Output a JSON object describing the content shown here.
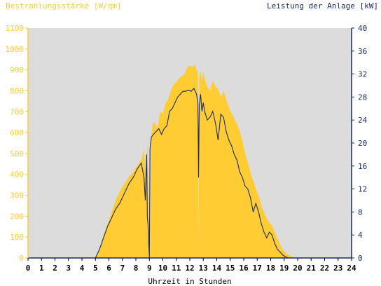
{
  "chart_data": {
    "type": "area",
    "left_axis_title": "Bestrahlungsstärke [W/qm]",
    "right_axis_title": "Leistung der Anlage [kW]",
    "xlabel": "Uhrzeit in Stunden",
    "x_ticks": [
      "0",
      "1",
      "2",
      "3",
      "4",
      "5",
      "6",
      "7",
      "8",
      "9",
      "10",
      "11",
      "12",
      "13",
      "14",
      "15",
      "16",
      "17",
      "18",
      "19",
      "20",
      "21",
      "22",
      "23",
      "24"
    ],
    "y_left_ticks": [
      "0",
      "100",
      "200",
      "300",
      "400",
      "500",
      "600",
      "700",
      "800",
      "900",
      "1000",
      "1100"
    ],
    "y_right_ticks": [
      "0",
      "4",
      "8",
      "12",
      "16",
      "20",
      "24",
      "28",
      "32",
      "36",
      "40"
    ],
    "xlim": [
      0,
      24
    ],
    "ylim_left": [
      0,
      1100
    ],
    "ylim_right": [
      0,
      40
    ],
    "grid": false,
    "colors": {
      "irradiance_fill": "#ffcc33",
      "power_line": "#1a2a6c",
      "plot_background": "#dcdcdc",
      "left_axis": "#ffcc33",
      "right_axis": "#1a2a6c"
    },
    "series": [
      {
        "axis": "left",
        "style": "area",
        "x": [
          0,
          4.9,
          5.1,
          5.4,
          5.7,
          6.0,
          6.3,
          6.6,
          6.9,
          7.2,
          7.5,
          7.8,
          8.1,
          8.4,
          8.6,
          8.75,
          8.85,
          8.95,
          9.05,
          9.15,
          9.25,
          9.4,
          9.6,
          9.8,
          10.0,
          10.2,
          10.4,
          10.6,
          10.8,
          11.0,
          11.2,
          11.4,
          11.6,
          11.8,
          12.0,
          12.2,
          12.4,
          12.6,
          12.65,
          12.7,
          12.8,
          12.9,
          13.0,
          13.1,
          13.3,
          13.5,
          13.7,
          13.9,
          14.1,
          14.3,
          14.5,
          14.7,
          14.9,
          15.1,
          15.3,
          15.5,
          15.7,
          15.9,
          16.1,
          16.3,
          16.5,
          16.7,
          16.9,
          17.1,
          17.3,
          17.5,
          17.7,
          17.9,
          18.1,
          18.3,
          18.5,
          18.7,
          18.9,
          19.1,
          19.3,
          19.5,
          19.7,
          19.9,
          20.1,
          20.3,
          24
        ],
        "values": [
          0,
          0,
          15,
          60,
          130,
          180,
          240,
          290,
          330,
          360,
          390,
          410,
          440,
          470,
          520,
          380,
          560,
          250,
          0,
          590,
          640,
          650,
          620,
          700,
          690,
          740,
          760,
          800,
          830,
          840,
          860,
          870,
          880,
          910,
          920,
          915,
          925,
          880,
          0,
          860,
          900,
          850,
          890,
          860,
          820,
          800,
          850,
          820,
          810,
          770,
          800,
          760,
          720,
          690,
          670,
          640,
          610,
          560,
          500,
          460,
          410,
          370,
          330,
          300,
          250,
          220,
          190,
          170,
          155,
          125,
          95,
          65,
          40,
          25,
          15,
          8,
          3,
          0,
          0,
          0,
          0
        ]
      },
      {
        "axis": "right",
        "style": "line",
        "x": [
          0,
          5.0,
          5.3,
          5.6,
          5.9,
          6.2,
          6.5,
          6.8,
          7.0,
          7.2,
          7.5,
          7.8,
          8.1,
          8.4,
          8.6,
          8.7,
          8.8,
          8.85,
          8.9,
          9.0,
          9.05,
          9.15,
          9.3,
          9.5,
          9.7,
          9.9,
          10.1,
          10.3,
          10.5,
          10.7,
          10.9,
          11.1,
          11.3,
          11.5,
          11.7,
          11.9,
          12.1,
          12.3,
          12.5,
          12.6,
          12.65,
          12.7,
          12.8,
          12.9,
          13.0,
          13.1,
          13.3,
          13.5,
          13.7,
          13.9,
          14.1,
          14.3,
          14.5,
          14.7,
          14.9,
          15.1,
          15.3,
          15.5,
          15.7,
          15.9,
          16.1,
          16.3,
          16.5,
          16.7,
          16.9,
          17.1,
          17.3,
          17.5,
          17.7,
          17.9,
          18.1,
          18.3,
          18.5,
          18.7,
          18.9,
          19.1,
          19.3,
          19.5,
          19.7,
          19.9,
          20.1,
          24
        ],
        "values": [
          0,
          0,
          1.5,
          3.5,
          5.5,
          7.0,
          8.5,
          9.5,
          10.5,
          11.5,
          13.0,
          14.0,
          15.5,
          16.5,
          14.0,
          10.0,
          18.0,
          7.0,
          6.0,
          0,
          19.0,
          21.0,
          21.5,
          22.0,
          22.5,
          21.5,
          22.5,
          23.0,
          25.5,
          26.0,
          27.0,
          28.0,
          28.5,
          29.0,
          29.0,
          29.2,
          29.0,
          29.5,
          28.5,
          27.0,
          14.0,
          26.5,
          28.5,
          25.5,
          27.0,
          25.5,
          24.0,
          24.5,
          25.5,
          23.5,
          20.5,
          25.0,
          24.5,
          22.0,
          20.5,
          19.5,
          18.0,
          17.0,
          15.0,
          14.0,
          12.5,
          12.0,
          10.5,
          8.0,
          9.5,
          8.0,
          6.0,
          4.5,
          3.5,
          4.5,
          4.0,
          2.5,
          1.5,
          1.0,
          0.5,
          0.2,
          0,
          0,
          0,
          0,
          0,
          0
        ]
      }
    ]
  }
}
